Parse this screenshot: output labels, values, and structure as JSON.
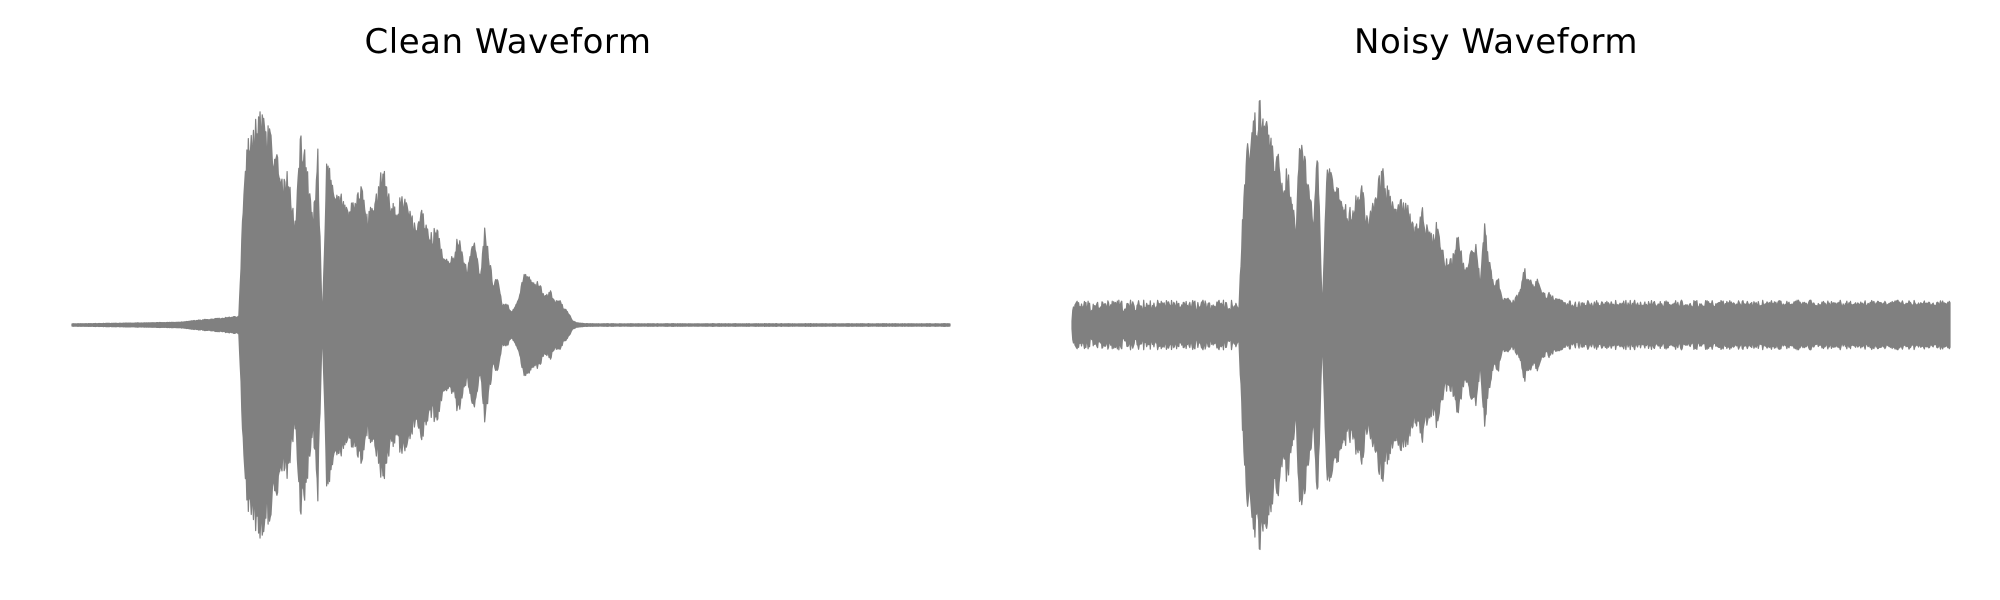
{
  "chart_data": [
    {
      "type": "area",
      "title": "Clean Waveform",
      "axes_visible": false,
      "color": "#808080",
      "ylim": [
        -1.0,
        1.0
      ],
      "xlim": [
        0.0,
        1.0
      ],
      "noise_floor": 0.005,
      "envelope": {
        "x": [
          0.0,
          0.12,
          0.19,
          0.195,
          0.2,
          0.205,
          0.21,
          0.215,
          0.22,
          0.225,
          0.23,
          0.235,
          0.24,
          0.245,
          0.25,
          0.255,
          0.26,
          0.265,
          0.27,
          0.275,
          0.28,
          0.285,
          0.29,
          0.295,
          0.3,
          0.305,
          0.31,
          0.315,
          0.32,
          0.325,
          0.33,
          0.335,
          0.34,
          0.345,
          0.35,
          0.355,
          0.36,
          0.365,
          0.37,
          0.375,
          0.38,
          0.385,
          0.39,
          0.395,
          0.4,
          0.405,
          0.41,
          0.415,
          0.42,
          0.425,
          0.43,
          0.435,
          0.44,
          0.445,
          0.45,
          0.455,
          0.46,
          0.465,
          0.47,
          0.475,
          0.48,
          0.485,
          0.49,
          0.495,
          0.5,
          0.505,
          0.51,
          0.515,
          0.52,
          0.525,
          0.53,
          0.535,
          0.54,
          0.545,
          0.55,
          0.555,
          0.56,
          0.565,
          0.57,
          0.575,
          0.58,
          0.585,
          0.59,
          0.595,
          0.6,
          0.605,
          0.61,
          0.615,
          0.62,
          0.625,
          1.0
        ],
        "amplitude": [
          0.005,
          0.012,
          0.04,
          0.55,
          0.82,
          0.9,
          0.96,
          0.98,
          0.9,
          0.86,
          0.8,
          0.75,
          0.62,
          0.72,
          0.55,
          0.45,
          0.86,
          0.8,
          0.6,
          0.5,
          0.78,
          0.02,
          0.7,
          0.68,
          0.62,
          0.6,
          0.55,
          0.5,
          0.56,
          0.58,
          0.65,
          0.48,
          0.52,
          0.55,
          0.66,
          0.7,
          0.6,
          0.55,
          0.5,
          0.58,
          0.55,
          0.5,
          0.45,
          0.46,
          0.52,
          0.42,
          0.4,
          0.45,
          0.35,
          0.3,
          0.28,
          0.32,
          0.42,
          0.3,
          0.25,
          0.35,
          0.36,
          0.2,
          0.45,
          0.3,
          0.18,
          0.22,
          0.09,
          0.1,
          0.06,
          0.08,
          0.15,
          0.25,
          0.22,
          0.18,
          0.2,
          0.16,
          0.13,
          0.15,
          0.1,
          0.12,
          0.08,
          0.06,
          0.02,
          0.01,
          0.008,
          0.006,
          0.006,
          0.005,
          0.005,
          0.005,
          0.005,
          0.005,
          0.005,
          0.005,
          0.005
        ]
      }
    },
    {
      "type": "area",
      "title": "Noisy Waveform",
      "axes_visible": false,
      "color": "#808080",
      "ylim": [
        -1.0,
        1.0
      ],
      "xlim": [
        0.0,
        1.0
      ],
      "noise_floor": 0.09,
      "envelope": {
        "x": [
          0.0,
          0.12,
          0.19,
          0.195,
          0.2,
          0.205,
          0.21,
          0.215,
          0.22,
          0.225,
          0.23,
          0.235,
          0.24,
          0.245,
          0.25,
          0.255,
          0.26,
          0.265,
          0.27,
          0.275,
          0.28,
          0.285,
          0.29,
          0.295,
          0.3,
          0.305,
          0.31,
          0.315,
          0.32,
          0.325,
          0.33,
          0.335,
          0.34,
          0.345,
          0.35,
          0.355,
          0.36,
          0.365,
          0.37,
          0.375,
          0.38,
          0.385,
          0.39,
          0.395,
          0.4,
          0.405,
          0.41,
          0.415,
          0.42,
          0.425,
          0.43,
          0.435,
          0.44,
          0.445,
          0.45,
          0.455,
          0.46,
          0.465,
          0.47,
          0.475,
          0.48,
          0.485,
          0.49,
          0.495,
          0.5,
          0.505,
          0.51,
          0.515,
          0.52,
          0.525,
          0.53,
          0.535,
          0.54,
          0.545,
          0.55,
          0.555,
          0.56,
          0.565,
          0.57,
          0.575,
          0.58,
          0.585,
          0.59,
          0.595,
          0.6,
          0.605,
          0.61,
          0.615,
          0.62,
          0.625,
          1.0
        ],
        "amplitude": [
          0.02,
          0.03,
          0.06,
          0.55,
          0.82,
          0.9,
          0.96,
          0.98,
          0.9,
          0.86,
          0.8,
          0.75,
          0.62,
          0.72,
          0.55,
          0.45,
          0.86,
          0.8,
          0.6,
          0.5,
          0.78,
          0.05,
          0.7,
          0.68,
          0.62,
          0.6,
          0.55,
          0.5,
          0.56,
          0.58,
          0.65,
          0.48,
          0.52,
          0.55,
          0.66,
          0.7,
          0.6,
          0.55,
          0.5,
          0.58,
          0.55,
          0.5,
          0.45,
          0.46,
          0.52,
          0.42,
          0.4,
          0.45,
          0.35,
          0.3,
          0.28,
          0.32,
          0.42,
          0.3,
          0.25,
          0.35,
          0.36,
          0.2,
          0.45,
          0.3,
          0.18,
          0.22,
          0.12,
          0.13,
          0.1,
          0.12,
          0.15,
          0.25,
          0.22,
          0.18,
          0.2,
          0.16,
          0.13,
          0.15,
          0.12,
          0.12,
          0.1,
          0.09,
          0.08,
          0.08,
          0.08,
          0.08,
          0.085,
          0.085,
          0.09,
          0.09,
          0.085,
          0.09,
          0.09,
          0.09,
          0.1
        ]
      }
    }
  ]
}
